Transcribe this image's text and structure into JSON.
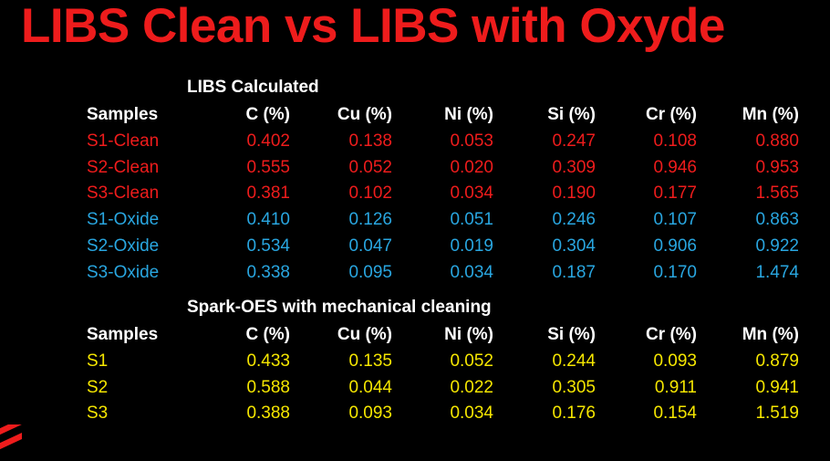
{
  "title": "LIBS Clean vs LIBS with Oxyde",
  "colors": {
    "title": "#ee1c1c",
    "clean": "#ee1c1c",
    "oxide": "#29a6e0",
    "spark": "#f5e600",
    "header": "#ffffff"
  },
  "libs": {
    "heading": "LIBS Calculated",
    "columns": [
      "Samples",
      "C (%)",
      "Cu (%)",
      "Ni (%)",
      "Si (%)",
      "Cr (%)",
      "Mn (%)"
    ],
    "rows": [
      {
        "sample": "S1-Clean",
        "values": [
          "0.402",
          "0.138",
          "0.053",
          "0.247",
          "0.108",
          "0.880"
        ],
        "group": "clean"
      },
      {
        "sample": "S2-Clean",
        "values": [
          "0.555",
          "0.052",
          "0.020",
          "0.309",
          "0.946",
          "0.953"
        ],
        "group": "clean"
      },
      {
        "sample": "S3-Clean",
        "values": [
          "0.381",
          "0.102",
          "0.034",
          "0.190",
          "0.177",
          "1.565"
        ],
        "group": "clean"
      },
      {
        "sample": "S1-Oxide",
        "values": [
          "0.410",
          "0.126",
          "0.051",
          "0.246",
          "0.107",
          "0.863"
        ],
        "group": "oxide"
      },
      {
        "sample": "S2-Oxide",
        "values": [
          "0.534",
          "0.047",
          "0.019",
          "0.304",
          "0.906",
          "0.922"
        ],
        "group": "oxide"
      },
      {
        "sample": "S3-Oxide",
        "values": [
          "0.338",
          "0.095",
          "0.034",
          "0.187",
          "0.170",
          "1.474"
        ],
        "group": "oxide"
      }
    ]
  },
  "spark": {
    "heading": "Spark-OES with mechanical cleaning",
    "columns": [
      "Samples",
      "C (%)",
      "Cu (%)",
      "Ni (%)",
      "Si (%)",
      "Cr (%)",
      "Mn (%)"
    ],
    "rows": [
      {
        "sample": "S1",
        "values": [
          "0.433",
          "0.135",
          "0.052",
          "0.244",
          "0.093",
          "0.879"
        ],
        "group": "spark"
      },
      {
        "sample": "S2",
        "values": [
          "0.588",
          "0.044",
          "0.022",
          "0.305",
          "0.911",
          "0.941"
        ],
        "group": "spark"
      },
      {
        "sample": "S3",
        "values": [
          "0.388",
          "0.093",
          "0.034",
          "0.176",
          "0.154",
          "1.519"
        ],
        "group": "spark"
      }
    ]
  }
}
